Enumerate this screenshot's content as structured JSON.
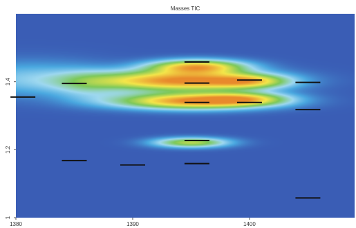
{
  "chart_data": {
    "type": "heatmap",
    "title": "Masses  TIC",
    "xlabel": "",
    "ylabel": "",
    "xlim": [
      1380,
      1409
    ],
    "ylim": [
      1.0,
      1.6
    ],
    "x_ticks": [
      {
        "value": 1380,
        "label": "1380"
      },
      {
        "value": 1390,
        "label": "1390"
      },
      {
        "value": 1400,
        "label": "1400"
      }
    ],
    "y_ticks": [
      {
        "value": 1.0,
        "label": "1"
      },
      {
        "value": 1.2,
        "label": "1.2"
      },
      {
        "value": 1.4,
        "label": "1.4"
      }
    ],
    "colormap": [
      "#3a5db5",
      "#4aa8e0",
      "#9ed8f0",
      "#7cc85a",
      "#f4e64a",
      "#e8892c"
    ],
    "background_color": "#3a5db5",
    "grid": false,
    "blobs": [
      {
        "x": 1394,
        "y": 1.404,
        "sx": 5.0,
        "sy": 0.02,
        "value": 1.0
      },
      {
        "x": 1395,
        "y": 1.344,
        "sx": 4.5,
        "sy": 0.016,
        "value": 0.95
      },
      {
        "x": 1395.5,
        "y": 1.445,
        "sx": 2.8,
        "sy": 0.014,
        "value": 0.85
      },
      {
        "x": 1400,
        "y": 1.402,
        "sx": 2.3,
        "sy": 0.014,
        "value": 0.5
      },
      {
        "x": 1399.5,
        "y": 1.35,
        "sx": 2.6,
        "sy": 0.013,
        "value": 0.5
      },
      {
        "x": 1395,
        "y": 1.222,
        "sx": 2.2,
        "sy": 0.01,
        "value": 0.6
      },
      {
        "x": 1381,
        "y": 1.41,
        "sx": 4.5,
        "sy": 0.035,
        "value": 0.22
      },
      {
        "x": 1386,
        "y": 1.39,
        "sx": 2.0,
        "sy": 0.03,
        "value": 0.18
      }
    ],
    "peak_markers": [
      {
        "x": 1380.6,
        "y": 1.355
      },
      {
        "x": 1385.0,
        "y": 1.395
      },
      {
        "x": 1385.0,
        "y": 1.168
      },
      {
        "x": 1390.0,
        "y": 1.155
      },
      {
        "x": 1395.5,
        "y": 1.458
      },
      {
        "x": 1395.5,
        "y": 1.396
      },
      {
        "x": 1395.5,
        "y": 1.339
      },
      {
        "x": 1395.5,
        "y": 1.227
      },
      {
        "x": 1395.5,
        "y": 1.159
      },
      {
        "x": 1400.0,
        "y": 1.405
      },
      {
        "x": 1400.0,
        "y": 1.339
      },
      {
        "x": 1405.0,
        "y": 1.398
      },
      {
        "x": 1405.0,
        "y": 1.318
      },
      {
        "x": 1405.0,
        "y": 1.058
      }
    ]
  }
}
